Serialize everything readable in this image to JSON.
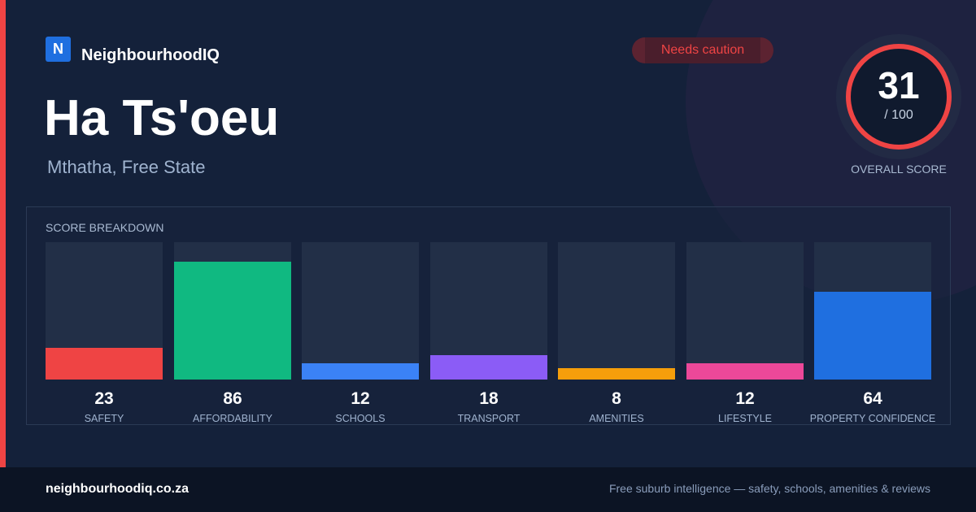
{
  "brand": {
    "logo_letter": "N",
    "name": "NeighbourhoodIQ"
  },
  "badge": {
    "label": "Needs caution",
    "color": "#ef4444"
  },
  "suburb": {
    "name": "Ha Ts'oeu",
    "location": "Mthatha, Free State"
  },
  "overall": {
    "score": "31",
    "denominator": "/ 100",
    "value": 31,
    "max": 100,
    "label": "OVERALL SCORE",
    "ring_color": "#ef4444"
  },
  "breakdown": {
    "title": "SCORE BREAKDOWN",
    "items": [
      {
        "label": "SAFETY",
        "value": "23",
        "score": 23,
        "color": "#ef4444"
      },
      {
        "label": "AFFORDABILITY",
        "value": "86",
        "score": 86,
        "color": "#10b981"
      },
      {
        "label": "SCHOOLS",
        "value": "12",
        "score": 12,
        "color": "#3b82f6"
      },
      {
        "label": "TRANSPORT",
        "value": "18",
        "score": 18,
        "color": "#8b5cf6"
      },
      {
        "label": "AMENITIES",
        "value": "8",
        "score": 8,
        "color": "#f59e0b"
      },
      {
        "label": "LIFESTYLE",
        "value": "12",
        "score": 12,
        "color": "#ec4899"
      },
      {
        "label": "PROPERTY CONFIDENCE",
        "value": "64",
        "score": 64,
        "color": "#1f6fe0"
      }
    ]
  },
  "footer": {
    "url": "neighbourhoodiq.co.za",
    "tagline": "Free suburb intelligence — safety, schools, amenities & reviews"
  }
}
